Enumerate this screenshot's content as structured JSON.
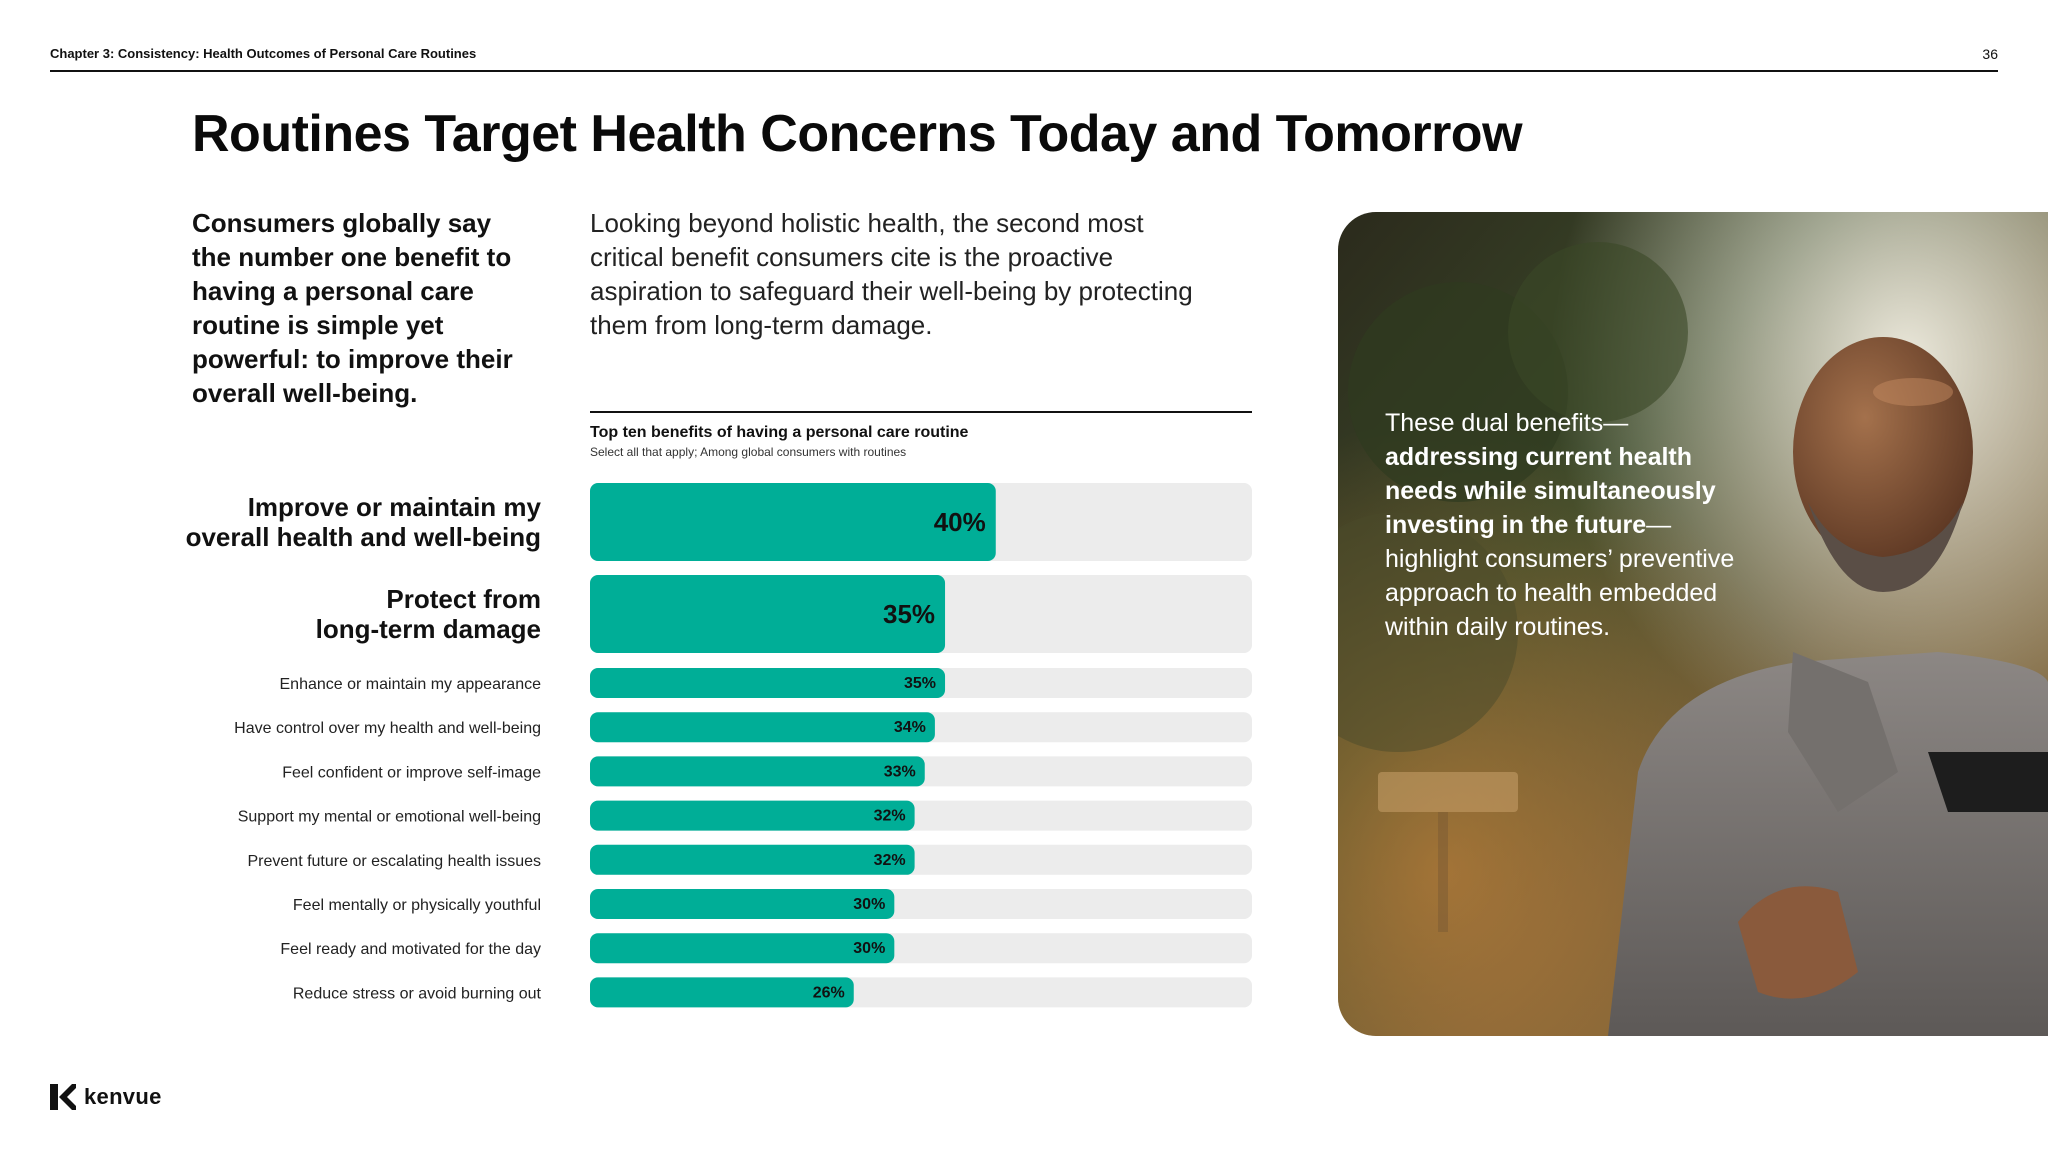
{
  "header": {
    "chapter": "Chapter 3: Consistency: Health Outcomes of Personal Care Routines",
    "page_number": "36"
  },
  "title": "Routines Target Health Concerns Today and Tomorrow",
  "lead": "Consumers globally say the number one benefit to having a personal care routine is simple yet powerful: to improve their overall well-being.",
  "intro": "Looking beyond holistic health, the second most critical benefit consumers cite is the proactive aspiration to safeguard their well-being by protecting them from long-term damage.",
  "photo_caption": {
    "part1": "These dual benefits—",
    "bold": "addressing current health needs while simultaneously investing in the future",
    "part2": "—highlight consumers’ preventive approach to health embedded within daily routines."
  },
  "logo": {
    "text": "kenvue"
  },
  "colors": {
    "bar": "#00ae97",
    "track": "#ececec",
    "text": "#111111"
  },
  "chart_data": {
    "type": "bar",
    "orientation": "horizontal",
    "title": "Top ten benefits of having a personal care routine",
    "subtitle": "Select all that apply; Among global consumers with routines",
    "unit": "%",
    "xlim": [
      0,
      100
    ],
    "categories": [
      "Improve or maintain my overall health and well-being",
      "Protect from long-term damage",
      "Enhance or maintain my appearance",
      "Have control over my health and well-being",
      "Feel confident or improve self-image",
      "Support my mental or emotional well-being",
      "Prevent future or escalating health issues",
      "Feel mentally or physically youthful",
      "Feel ready and motivated for the day",
      "Reduce stress or avoid burning out"
    ],
    "values": [
      40,
      35,
      35,
      34,
      33,
      32,
      32,
      30,
      30,
      26
    ],
    "value_labels": [
      "40%",
      "35%",
      "35%",
      "34%",
      "33%",
      "32%",
      "32%",
      "30%",
      "30%",
      "26%"
    ],
    "highlighted": [
      true,
      true,
      false,
      false,
      false,
      false,
      false,
      false,
      false,
      false
    ]
  }
}
